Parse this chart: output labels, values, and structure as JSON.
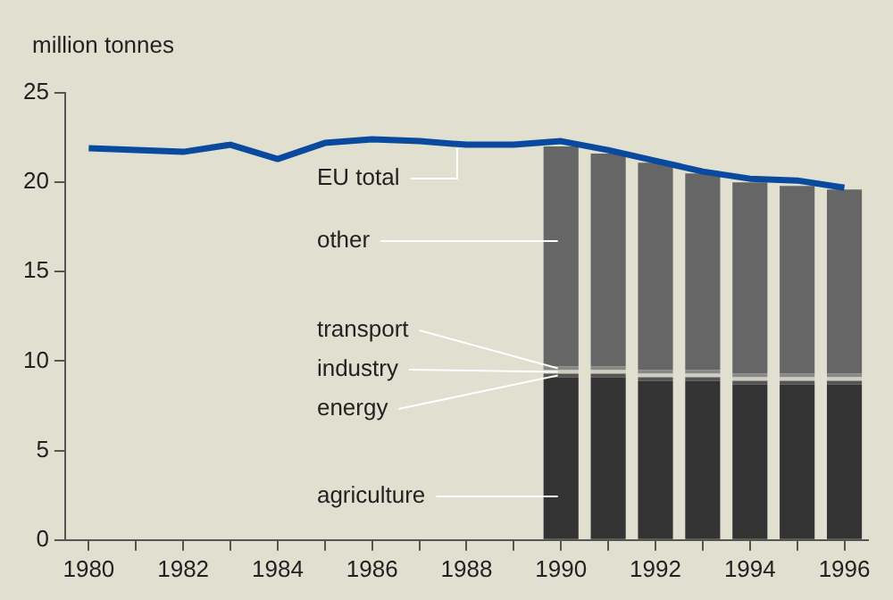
{
  "chart_data": {
    "type": "bar",
    "ylabel": "million tonnes",
    "stacked": true,
    "legend": false,
    "grid": false,
    "x": [
      1990,
      1991,
      1992,
      1993,
      1994,
      1995,
      1996
    ],
    "series": [
      {
        "name": "agriculture",
        "color": "#333333",
        "values": [
          9.1,
          9.1,
          8.9,
          8.9,
          8.7,
          8.7,
          8.7
        ]
      },
      {
        "name": "energy",
        "color": "#555555",
        "values": [
          0.2,
          0.2,
          0.2,
          0.2,
          0.2,
          0.2,
          0.2
        ]
      },
      {
        "name": "industry",
        "color": "#cfcfc0",
        "values": [
          0.2,
          0.2,
          0.2,
          0.2,
          0.2,
          0.2,
          0.2
        ]
      },
      {
        "name": "transport",
        "color": "#888888",
        "values": [
          0.2,
          0.2,
          0.2,
          0.2,
          0.2,
          0.2,
          0.2
        ]
      },
      {
        "name": "other",
        "color": "#666666",
        "values": [
          12.3,
          11.9,
          11.6,
          11.0,
          10.7,
          10.5,
          10.3
        ]
      },
      {
        "name": "EU total",
        "type": "line",
        "color": "#0a4a9e",
        "x": [
          1980,
          1981,
          1982,
          1983,
          1984,
          1985,
          1986,
          1987,
          1988,
          1989,
          1990,
          1991,
          1992,
          1993,
          1994,
          1995,
          1996
        ],
        "values": [
          21.9,
          21.8,
          21.7,
          22.1,
          21.3,
          22.2,
          22.4,
          22.3,
          22.1,
          22.1,
          22.3,
          21.8,
          21.2,
          20.6,
          20.2,
          20.1,
          19.7
        ]
      }
    ],
    "xlim": [
      1979.5,
      1996.5
    ],
    "xticks": [
      1980,
      {
        "value": 1981,
        "label": null
      },
      1982,
      {
        "value": 1983,
        "label": null
      },
      1984,
      {
        "value": 1985,
        "label": null
      },
      1986,
      {
        "value": 1987,
        "label": null
      },
      1988,
      {
        "value": 1989,
        "label": null
      },
      1990,
      {
        "value": 1991,
        "label": null
      },
      1992,
      {
        "value": 1993,
        "label": null
      },
      1994,
      {
        "value": 1995,
        "label": null
      },
      1996
    ],
    "ylim": [
      0,
      25
    ],
    "yticks": [
      0,
      5,
      10,
      15,
      20,
      25
    ]
  }
}
